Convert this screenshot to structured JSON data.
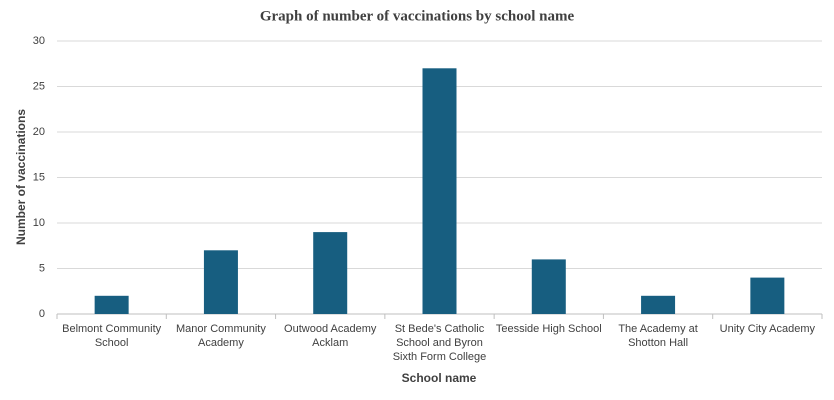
{
  "chart_data": {
    "type": "bar",
    "title": "Graph of number of vaccinations by school name",
    "x_label": "School name",
    "y_label": "Number of vaccinations",
    "categories": [
      "Belmont Community School",
      "Manor Community Academy",
      "Outwood Academy Acklam",
      "St Bede's Catholic School and Byron Sixth Form College",
      "Teesside High School",
      "The Academy at Shotton Hall",
      "Unity City Academy"
    ],
    "values": [
      2,
      7,
      9,
      27,
      6,
      2,
      4
    ],
    "color": "#175e80",
    "ylim": [
      0,
      30
    ],
    "yticks": [
      0,
      5,
      10,
      15,
      20,
      25,
      30
    ],
    "grid": true
  }
}
